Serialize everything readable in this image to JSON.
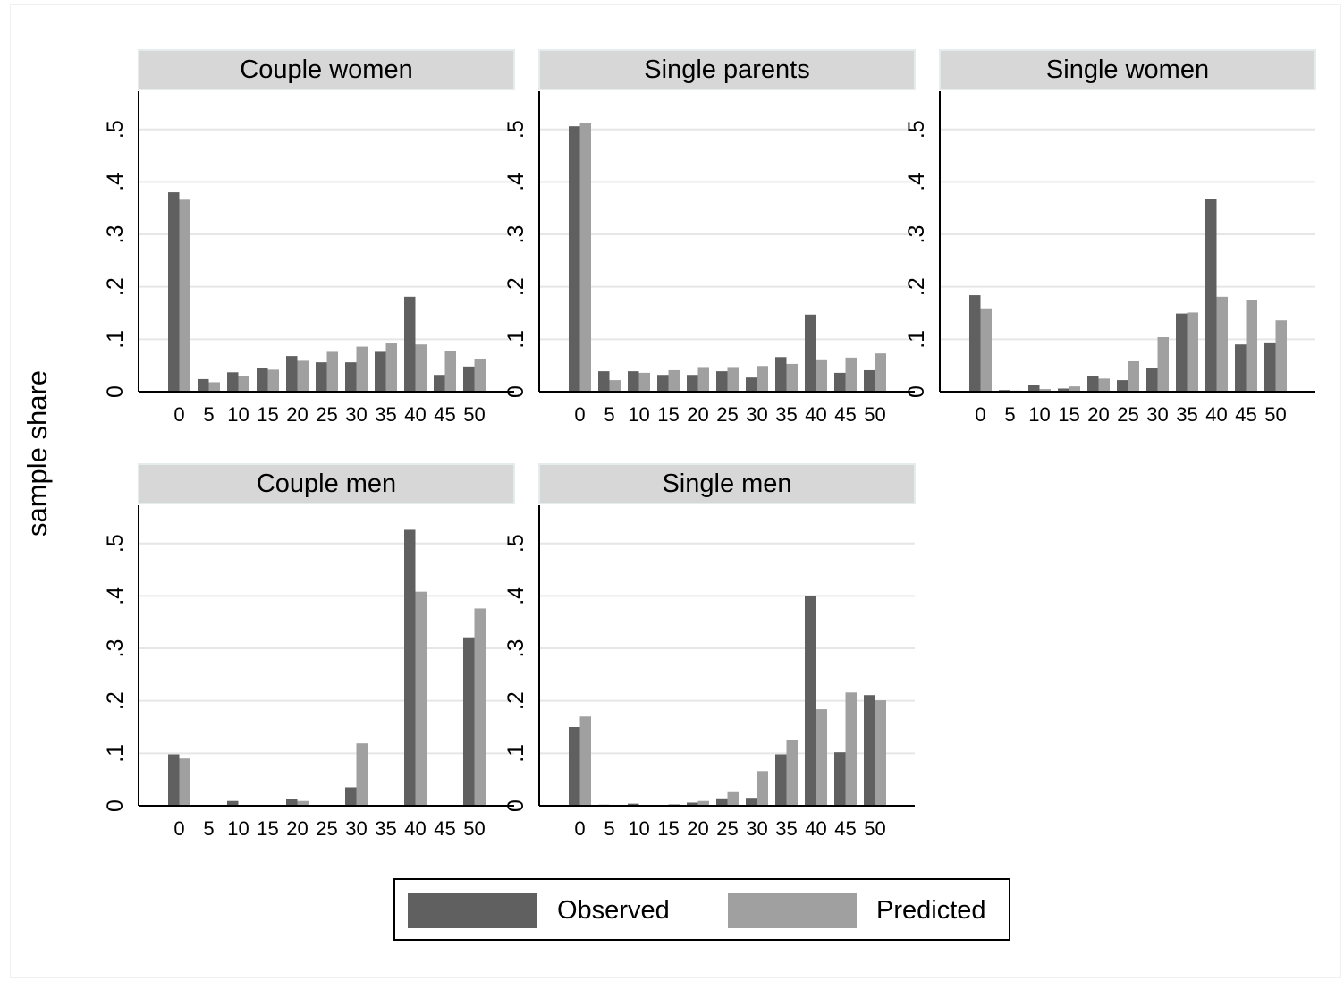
{
  "chart_data": {
    "type": "bar",
    "ylabel": "sample share",
    "y_ticks": [
      0,
      0.1,
      0.2,
      0.3,
      0.4,
      0.5
    ],
    "y_tick_labels": [
      "0",
      ".1",
      ".2",
      ".3",
      ".4",
      ".5"
    ],
    "ylim": [
      0,
      0.575
    ],
    "categories": [
      "0",
      "5",
      "10",
      "15",
      "20",
      "25",
      "30",
      "35",
      "40",
      "45",
      "50"
    ],
    "grid": true,
    "legend": {
      "position": "bottom",
      "observed_label": "Observed",
      "predicted_label": "Predicted"
    },
    "colors": {
      "observed": "#606060",
      "predicted": "#a0a0a0",
      "header_bg": "#d7d7d7",
      "header_border": "#e4ecee",
      "grid": "#e6e6e6"
    },
    "panels": [
      {
        "title": "Couple women",
        "series": [
          {
            "name": "Observed",
            "values": [
              0.38,
              0.024,
              0.037,
              0.045,
              0.068,
              0.056,
              0.056,
              0.076,
              0.181,
              0.032,
              0.048
            ]
          },
          {
            "name": "Predicted",
            "values": [
              0.366,
              0.018,
              0.029,
              0.042,
              0.059,
              0.076,
              0.086,
              0.092,
              0.09,
              0.078,
              0.063
            ]
          }
        ]
      },
      {
        "title": "Single parents",
        "series": [
          {
            "name": "Observed",
            "values": [
              0.506,
              0.039,
              0.039,
              0.032,
              0.032,
              0.039,
              0.027,
              0.066,
              0.147,
              0.036,
              0.041
            ]
          },
          {
            "name": "Predicted",
            "values": [
              0.513,
              0.022,
              0.036,
              0.041,
              0.047,
              0.047,
              0.049,
              0.053,
              0.06,
              0.065,
              0.073
            ]
          }
        ]
      },
      {
        "title": "Single women",
        "series": [
          {
            "name": "Observed",
            "values": [
              0.184,
              0.003,
              0.013,
              0.006,
              0.029,
              0.022,
              0.046,
              0.149,
              0.368,
              0.09,
              0.094
            ]
          },
          {
            "name": "Predicted",
            "values": [
              0.159,
              0.002,
              0.005,
              0.01,
              0.025,
              0.058,
              0.104,
              0.151,
              0.181,
              0.174,
              0.136
            ]
          }
        ]
      },
      {
        "title": "Couple men",
        "series": [
          {
            "name": "Observed",
            "values": [
              0.098,
              0.0,
              0.009,
              0.0,
              0.013,
              0.0,
              0.035,
              0.0,
              0.526,
              0.0,
              0.321
            ]
          },
          {
            "name": "Predicted",
            "values": [
              0.09,
              0.0,
              0.0,
              0.0,
              0.009,
              0.0,
              0.119,
              0.0,
              0.408,
              0.0,
              0.376
            ]
          }
        ]
      },
      {
        "title": "Single men",
        "series": [
          {
            "name": "Observed",
            "values": [
              0.15,
              0.002,
              0.004,
              0.0,
              0.006,
              0.014,
              0.015,
              0.098,
              0.4,
              0.102,
              0.211
            ]
          },
          {
            "name": "Predicted",
            "values": [
              0.17,
              0.001,
              0.001,
              0.003,
              0.009,
              0.026,
              0.066,
              0.125,
              0.184,
              0.216,
              0.201
            ]
          }
        ]
      }
    ]
  }
}
